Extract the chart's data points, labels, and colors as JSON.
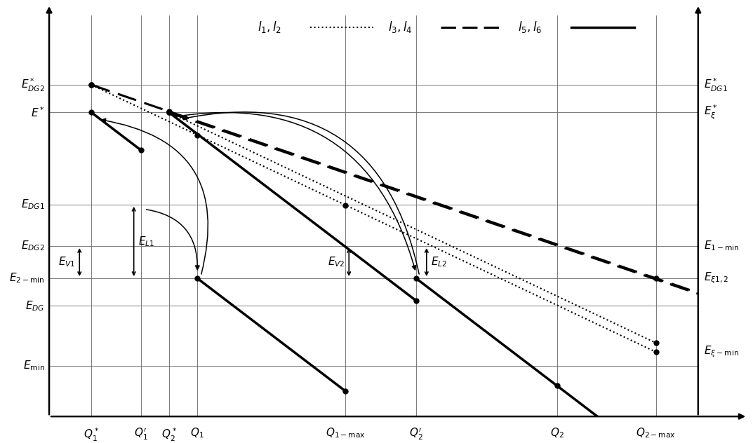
{
  "bg_color": "#ffffff",
  "fig_width": 10.73,
  "fig_height": 6.32,
  "E_DG2s": 9.4,
  "E_s": 8.8,
  "E_DG1": 6.8,
  "E_DG2": 5.9,
  "E_2min": 5.2,
  "E_DG": 4.6,
  "E_min": 3.3,
  "E_DG1s": 9.4,
  "E_xis": 8.8,
  "E_1min": 5.9,
  "E_xi12": 5.2,
  "E_ximin": 3.6,
  "xQ1s": 1.15,
  "xQ1p": 1.85,
  "xQ2s": 2.25,
  "xQ1": 2.65,
  "xQ1max": 4.75,
  "xQ2p": 5.75,
  "xQ2": 7.75,
  "xQ2max": 9.15,
  "xmin": 0.0,
  "xmax": 10.5,
  "ymin": 2.2,
  "ymax": 11.2,
  "yax_x": 0.55,
  "xax_y": 2.2
}
